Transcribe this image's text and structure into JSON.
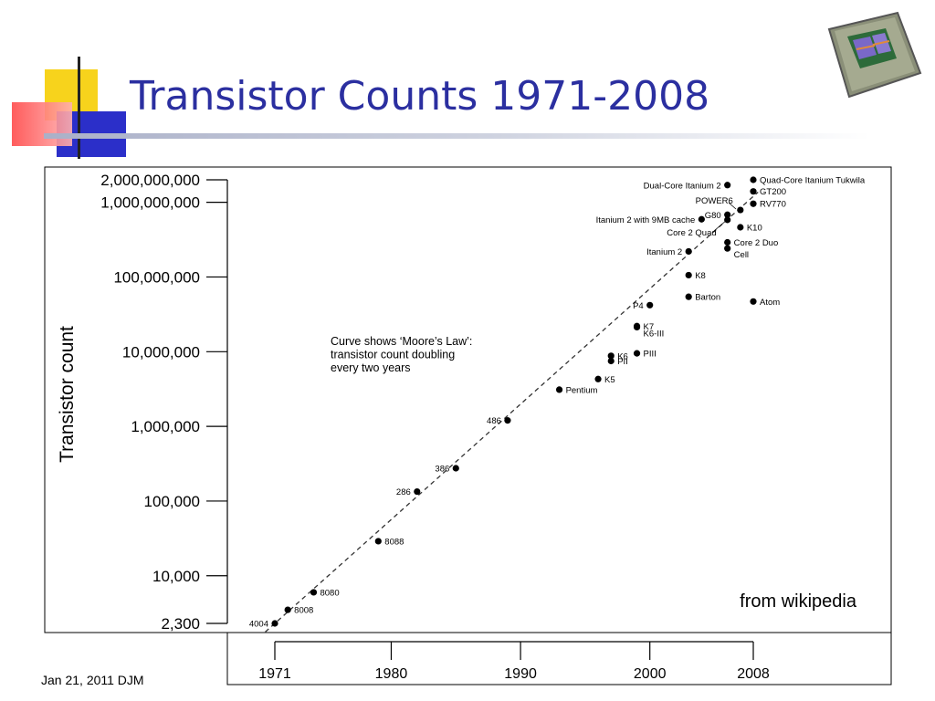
{
  "slide": {
    "title": "Transistor Counts 1971-2008",
    "footer": "Jan 21, 2011 DJM",
    "source_note": "from wikipedia"
  },
  "chart_data": {
    "type": "scatter",
    "title": "",
    "xlabel": "",
    "ylabel": "Transistor count",
    "yscale": "log",
    "xlim": [
      1971,
      2008
    ],
    "ylim": [
      2300,
      2000000000
    ],
    "x_ticks": [
      1971,
      1980,
      1990,
      2000,
      2008
    ],
    "x_tick_labels": [
      "1971",
      "1980",
      "1990",
      "2000",
      "2008"
    ],
    "y_ticks": [
      2300,
      10000,
      100000,
      1000000,
      10000000,
      100000000,
      1000000000,
      2000000000
    ],
    "y_tick_labels": [
      "2,300",
      "10,000",
      "100,000",
      "1,000,000",
      "10,000,000",
      "100,000,000",
      "1,000,000,000",
      "2,000,000,000"
    ],
    "annotation": [
      "Curve shows ‘Moore’s Law’:",
      "transistor count doubling",
      "every two years"
    ],
    "trend_line": {
      "style": "dashed",
      "from": [
        1971,
        2300
      ],
      "to": [
        2008,
        1200000000
      ]
    },
    "grid": false,
    "points": [
      {
        "label": "4004",
        "x": 1971,
        "y": 2300,
        "side": "left"
      },
      {
        "label": "8008",
        "x": 1972,
        "y": 3500,
        "side": "right"
      },
      {
        "label": "8080",
        "x": 1974,
        "y": 6000,
        "side": "right"
      },
      {
        "label": "8088",
        "x": 1979,
        "y": 29000,
        "side": "right"
      },
      {
        "label": "286",
        "x": 1982,
        "y": 134000,
        "side": "left"
      },
      {
        "label": "386",
        "x": 1985,
        "y": 275000,
        "side": "left"
      },
      {
        "label": "486",
        "x": 1989,
        "y": 1200000,
        "side": "left"
      },
      {
        "label": "Pentium",
        "x": 1993,
        "y": 3100000,
        "side": "right"
      },
      {
        "label": "K5",
        "x": 1996,
        "y": 4300000,
        "side": "right"
      },
      {
        "label": "K6",
        "x": 1997,
        "y": 8800000,
        "side": "right"
      },
      {
        "label": "PII",
        "x": 1997,
        "y": 7500000,
        "side": "right"
      },
      {
        "label": "PIII",
        "x": 1999,
        "y": 9500000,
        "side": "right"
      },
      {
        "label": "K7",
        "x": 1999,
        "y": 22000000,
        "side": "right"
      },
      {
        "label": "K6-III",
        "x": 1999,
        "y": 21300000,
        "side": "right-low"
      },
      {
        "label": "P4",
        "x": 2000,
        "y": 42000000,
        "side": "left"
      },
      {
        "label": "Barton",
        "x": 2003,
        "y": 54300000,
        "side": "right"
      },
      {
        "label": "K8",
        "x": 2003,
        "y": 105900000,
        "side": "right"
      },
      {
        "label": "Itanium 2",
        "x": 2003,
        "y": 220000000,
        "side": "left"
      },
      {
        "label": "Atom",
        "x": 2008,
        "y": 47000000,
        "side": "right"
      },
      {
        "label": "Cell",
        "x": 2006,
        "y": 241000000,
        "side": "right-low"
      },
      {
        "label": "Core 2 Duo",
        "x": 2006,
        "y": 291000000,
        "side": "right"
      },
      {
        "label": "K10",
        "x": 2007,
        "y": 463000000,
        "side": "right"
      },
      {
        "label": "Core 2 Quad",
        "x": 2006,
        "y": 582000000,
        "side": "left-low"
      },
      {
        "label": "Itanium 2 with 9MB cache",
        "x": 2004,
        "y": 592000000,
        "side": "left"
      },
      {
        "label": "G80",
        "x": 2006,
        "y": 681000000,
        "side": "left"
      },
      {
        "label": "POWER6",
        "x": 2007,
        "y": 789000000,
        "side": "left-high"
      },
      {
        "label": "RV770",
        "x": 2008,
        "y": 956000000,
        "side": "right"
      },
      {
        "label": "Dual-Core Itanium 2",
        "x": 2006,
        "y": 1700000000,
        "side": "left"
      },
      {
        "label": "GT200",
        "x": 2008,
        "y": 1400000000,
        "side": "right"
      },
      {
        "label": "Quad-Core Itanium Tukwila",
        "x": 2008,
        "y": 2000000000,
        "side": "right"
      }
    ]
  }
}
